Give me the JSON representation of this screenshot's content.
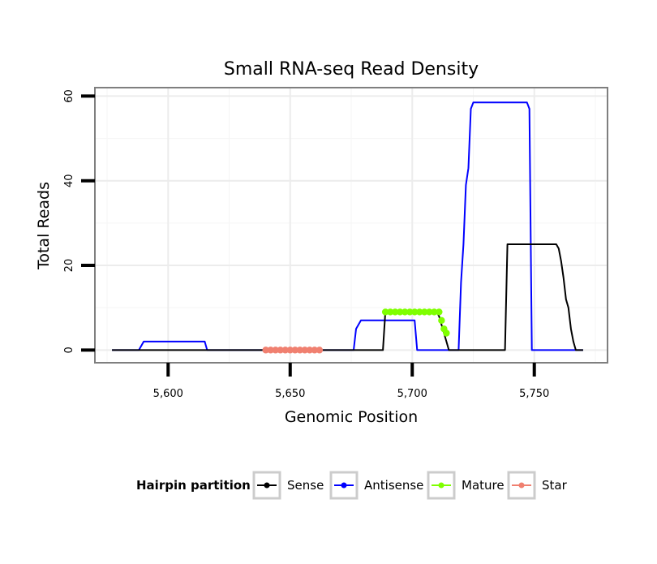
{
  "chart_data": {
    "type": "line",
    "title": "Small RNA-seq Read Density",
    "xlabel": "Genomic Position",
    "ylabel": "Total Reads",
    "xlim": [
      5570,
      5780
    ],
    "ylim": [
      -3,
      62
    ],
    "x_ticks": [
      5600,
      5650,
      5700,
      5750
    ],
    "x_tick_labels": [
      "5,600",
      "5,650",
      "5,700",
      "5,750"
    ],
    "y_ticks": [
      0,
      20,
      40,
      60
    ],
    "y_tick_labels": [
      "0",
      "20",
      "40",
      "60"
    ],
    "grid": true,
    "legend": {
      "title": "Hairpin partition",
      "position": "bottom",
      "entries": [
        "Sense",
        "Antisense",
        "Mature",
        "Star"
      ]
    },
    "series": [
      {
        "name": "Antisense",
        "color": "#0000ff",
        "style": "line",
        "x": [
          5577,
          5588,
          5590,
          5615,
          5616,
          5640,
          5676,
          5677,
          5679,
          5701,
          5702,
          5716,
          5719,
          5720,
          5721,
          5722,
          5723,
          5724,
          5725,
          5747,
          5748,
          5749,
          5750,
          5770
        ],
        "y": [
          0,
          0,
          2,
          2,
          0,
          0,
          0,
          5,
          7,
          7,
          0,
          0,
          0,
          16,
          25,
          39,
          43,
          57,
          58.5,
          58.5,
          57,
          0,
          0,
          0
        ]
      },
      {
        "name": "Sense",
        "color": "#000000",
        "style": "line",
        "x": [
          5577,
          5688,
          5689,
          5710,
          5711,
          5714,
          5715,
          5738,
          5739,
          5759,
          5760,
          5761,
          5762,
          5763,
          5764,
          5765,
          5766,
          5767,
          5770
        ],
        "y": [
          0,
          0,
          9,
          9,
          8,
          2,
          0,
          0,
          25,
          25,
          24,
          21,
          17,
          12,
          10,
          5,
          2,
          0,
          0
        ]
      },
      {
        "name": "Mature",
        "color": "#7fff00",
        "style": "points",
        "x": [
          5689,
          5691,
          5693,
          5695,
          5697,
          5699,
          5701,
          5703,
          5705,
          5707,
          5709,
          5711,
          5712,
          5713,
          5714
        ],
        "y": [
          9,
          9,
          9,
          9,
          9,
          9,
          9,
          9,
          9,
          9,
          9,
          9,
          7,
          5,
          4
        ]
      },
      {
        "name": "Star",
        "color": "#f08070",
        "style": "points",
        "x": [
          5640,
          5642,
          5644,
          5646,
          5648,
          5650,
          5652,
          5654,
          5656,
          5658,
          5660,
          5662
        ],
        "y": [
          0,
          0,
          0,
          0,
          0,
          0,
          0,
          0,
          0,
          0,
          0,
          0
        ]
      }
    ]
  }
}
